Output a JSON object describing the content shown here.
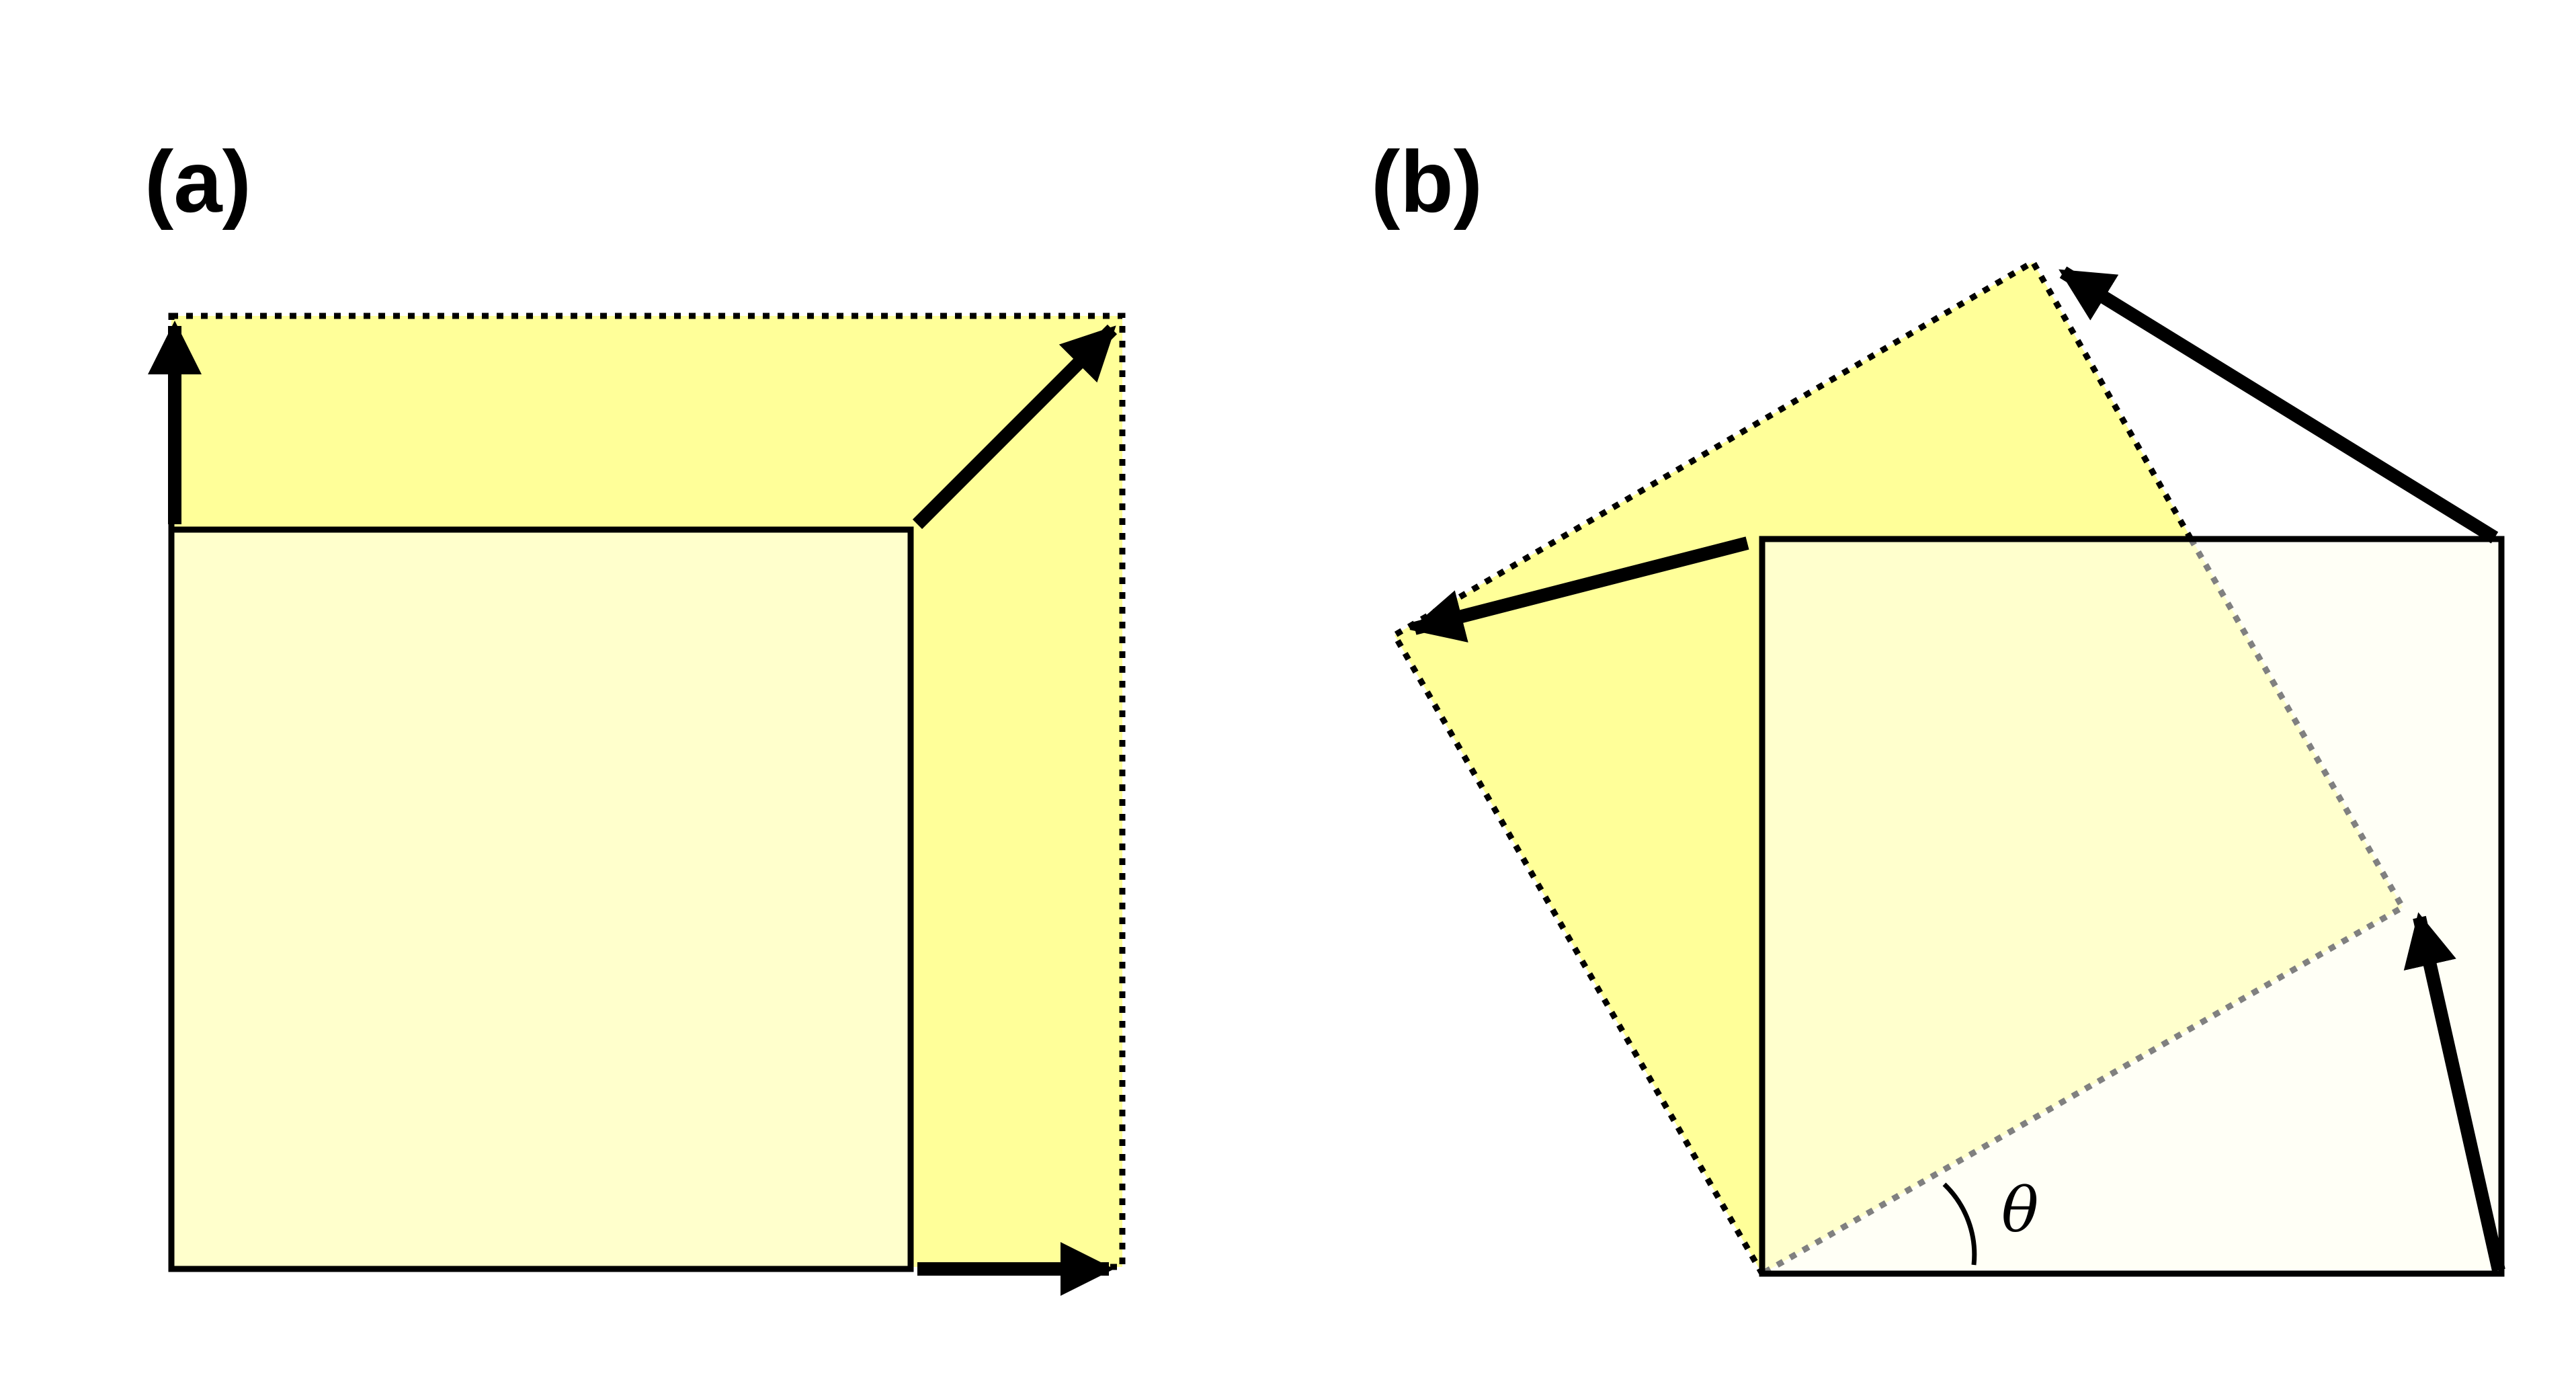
{
  "panels": [
    {
      "id": "a",
      "label": "(a)"
    },
    {
      "id": "b",
      "label": "(b)",
      "angle_symbol": "θ"
    }
  ],
  "colors": {
    "background": "#ffffff",
    "yellow_strong": "#ffff99",
    "yellow_light": "#ffffcc",
    "yellow_faint": "#fffff0",
    "stroke": "#000000",
    "dotted_hidden": "#808080"
  }
}
